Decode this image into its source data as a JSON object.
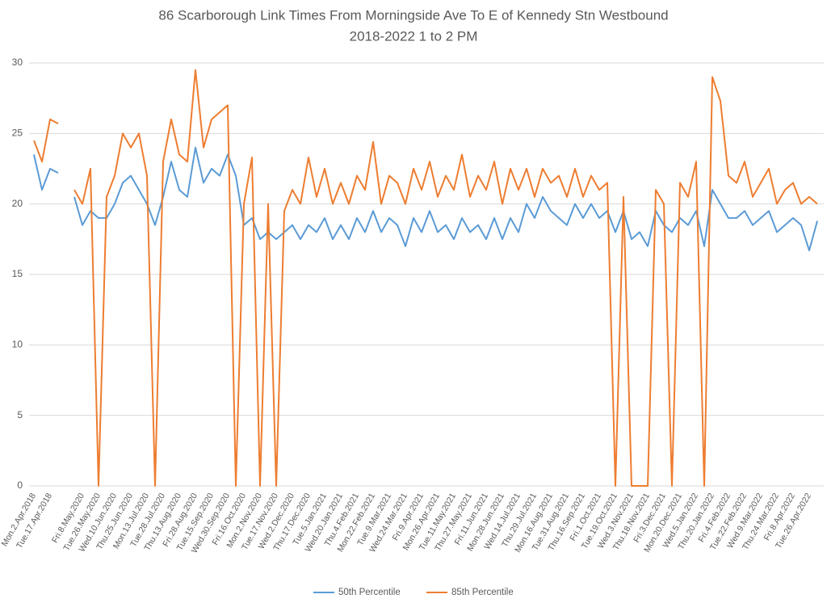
{
  "chart_data": {
    "type": "line",
    "title": "86 Scarborough Link Times From Morningside Ave To E of Kennedy Stn Westbound",
    "subtitle": "2018-2022 1 to 2 PM",
    "categories": [
      "Mon.2.Apr.2018",
      null,
      "Tue.17.Apr.2018",
      null,
      null,
      null,
      "Fri.8.May.2020",
      null,
      "Tue.26.May.2020",
      null,
      "Wed.10.Jun.2020",
      null,
      "Thu.25.Jun.2020",
      null,
      "Mon.13.Jul.2020",
      null,
      "Tue.28.Jul.2020",
      null,
      "Thu.13.Aug.2020",
      null,
      "Fri.28.Aug.2020",
      null,
      "Tue.15.Sep.2020",
      null,
      "Wed.30.Sep.2020",
      null,
      "Fri.16.Oct.2020",
      null,
      "Mon.2.Nov.2020",
      null,
      "Tue.17.Nov.2020",
      null,
      "Wed.2.Dec.2020",
      null,
      "Thu.17.Dec.2020",
      null,
      "Tue.5.Jan.2021",
      null,
      "Wed.20.Jan.2021",
      null,
      "Thu.4.Feb.2021",
      null,
      "Mon.22.Feb.2021",
      null,
      "Tue.9.Mar.2021",
      null,
      "Wed.24.Mar.2021",
      null,
      "Fri.9.Apr.2021",
      null,
      "Mon.26.Apr.2021",
      null,
      "Tue.11.May.2021",
      null,
      "Thu.27.May.2021",
      null,
      "Fri.11.Jun.2021",
      null,
      "Mon.28.Jun.2021",
      null,
      "Wed.14.Jul.2021",
      null,
      "Thu.29.Jul.2021",
      null,
      "Mon.16.Aug.2021",
      null,
      "Tue.31.Aug.2021",
      null,
      "Thu.16.Sep.2021",
      null,
      "Fri.1.Oct.2021",
      null,
      "Tue.19.Oct.2021",
      null,
      "Wed.3.Nov.2021",
      null,
      "Thu.18.Nov.2021",
      null,
      "Fri.3.Dec.2021",
      null,
      "Mon.20.Dec.2021",
      null,
      "Wed.5.Jan.2022",
      null,
      "Thu.20.Jan.2022",
      null,
      "Fri.4.Feb.2022",
      null,
      "Tue.22.Feb.2022",
      null,
      "Wed.9.Mar.2022",
      null,
      "Thu.24.Mar.2022",
      null,
      "Fri.8.Apr.2022",
      null,
      "Tue.26.Apr.2022",
      null
    ],
    "series": [
      {
        "name": "50th Percentile",
        "color": "#5b9bd5",
        "values": [
          23.5,
          21,
          22.5,
          22.2,
          null,
          20.5,
          18.5,
          19.5,
          19,
          19,
          20,
          21.5,
          22,
          21,
          20,
          18.5,
          20.5,
          23,
          21,
          20.5,
          24,
          21.5,
          22.5,
          22,
          23.5,
          22,
          18.5,
          19,
          17.5,
          18,
          17.5,
          18,
          18.5,
          17.5,
          18.5,
          18,
          19,
          17.5,
          18.5,
          17.5,
          19,
          18,
          19.5,
          18,
          19,
          18.5,
          17,
          19,
          18,
          19.5,
          18,
          18.5,
          17.5,
          19,
          18,
          18.5,
          17.5,
          19,
          17.5,
          19,
          18,
          20,
          19,
          20.5,
          19.5,
          19,
          18.5,
          20,
          19,
          20,
          19,
          19.5,
          18,
          19.5,
          17.5,
          18,
          17,
          19.5,
          18.5,
          18,
          19,
          18.5,
          19.5,
          17,
          21,
          20,
          19,
          19,
          19.5,
          18.5,
          19,
          19.5,
          18,
          18.5,
          19,
          18.5,
          16.7,
          18.8
        ]
      },
      {
        "name": "85th Percentile",
        "color": "#ed7d31",
        "values": [
          24.5,
          23,
          26,
          25.7,
          null,
          21,
          20,
          22.5,
          0,
          20.5,
          22,
          25,
          24,
          25,
          22,
          0,
          23,
          26,
          23.5,
          23,
          29.5,
          24,
          26,
          26.5,
          27,
          0,
          20,
          23.3,
          0,
          20,
          0,
          19.5,
          21,
          20,
          23.3,
          20.5,
          22.5,
          20,
          21.5,
          20,
          22,
          21,
          24.4,
          20,
          22,
          21.5,
          20,
          22.5,
          21,
          23,
          20.5,
          22,
          21,
          23.5,
          20.5,
          22,
          21,
          23,
          20,
          22.5,
          21,
          22.5,
          20.5,
          22.5,
          21.5,
          22,
          20.5,
          22.5,
          20.5,
          22,
          21,
          21.5,
          0,
          20.5,
          0,
          0,
          0,
          21,
          20,
          0,
          21.5,
          20.5,
          23,
          0,
          29,
          27.3,
          22,
          21.5,
          23,
          20.5,
          21.5,
          22.5,
          20,
          21,
          21.5,
          20,
          20.5,
          20
        ]
      }
    ],
    "ylim": [
      0,
      30
    ],
    "yticks": [
      0,
      5,
      10,
      15,
      20,
      25,
      30
    ],
    "grid": true,
    "legend": "bottom"
  }
}
